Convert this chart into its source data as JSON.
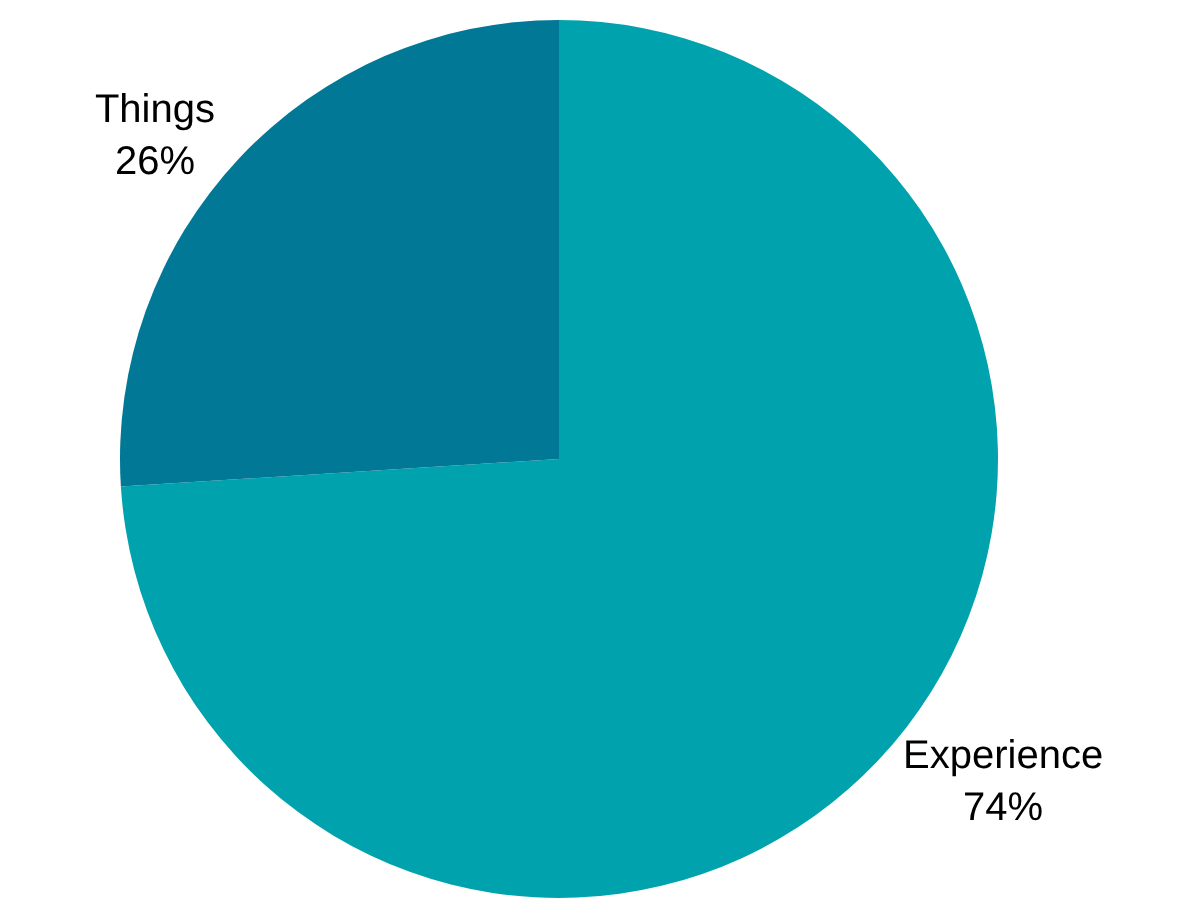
{
  "chart_data": {
    "type": "pie",
    "categories": [
      "Experience",
      "Things"
    ],
    "values": [
      74,
      26
    ],
    "value_labels": [
      "74%",
      "26%"
    ],
    "colors": [
      "#00a3ad",
      "#007896"
    ],
    "legend": false
  }
}
